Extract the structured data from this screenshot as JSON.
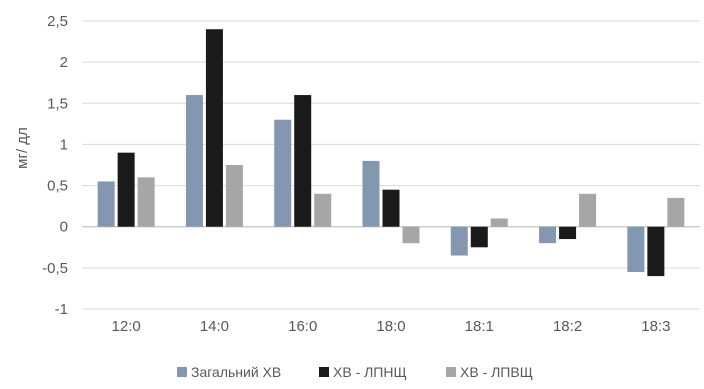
{
  "chart_data": {
    "type": "bar",
    "title": "",
    "xlabel": "",
    "ylabel": "мг/ дл",
    "categories": [
      "12:0",
      "14:0",
      "16:0",
      "18:0",
      "18:1",
      "18:2",
      "18:3"
    ],
    "series": [
      {
        "name": "Загальний ХВ",
        "color": "#8497b0",
        "values": [
          0.55,
          1.6,
          1.3,
          0.8,
          -0.35,
          -0.2,
          -0.55
        ]
      },
      {
        "name": "ХВ - ЛПНЩ",
        "color": "#1a1a1a",
        "values": [
          0.9,
          2.4,
          1.6,
          0.45,
          -0.25,
          -0.15,
          -0.6
        ]
      },
      {
        "name": "ХВ - ЛПВЩ",
        "color": "#a6a6a6",
        "values": [
          0.6,
          0.75,
          0.4,
          -0.2,
          0.1,
          0.4,
          0.35
        ]
      }
    ],
    "yticks": [
      "-1",
      "-0,5",
      "0",
      "0,5",
      "1",
      "1,5",
      "2",
      "2,5"
    ],
    "ylim": [
      -1,
      2.5
    ],
    "grid": true,
    "legend": "bottom"
  }
}
